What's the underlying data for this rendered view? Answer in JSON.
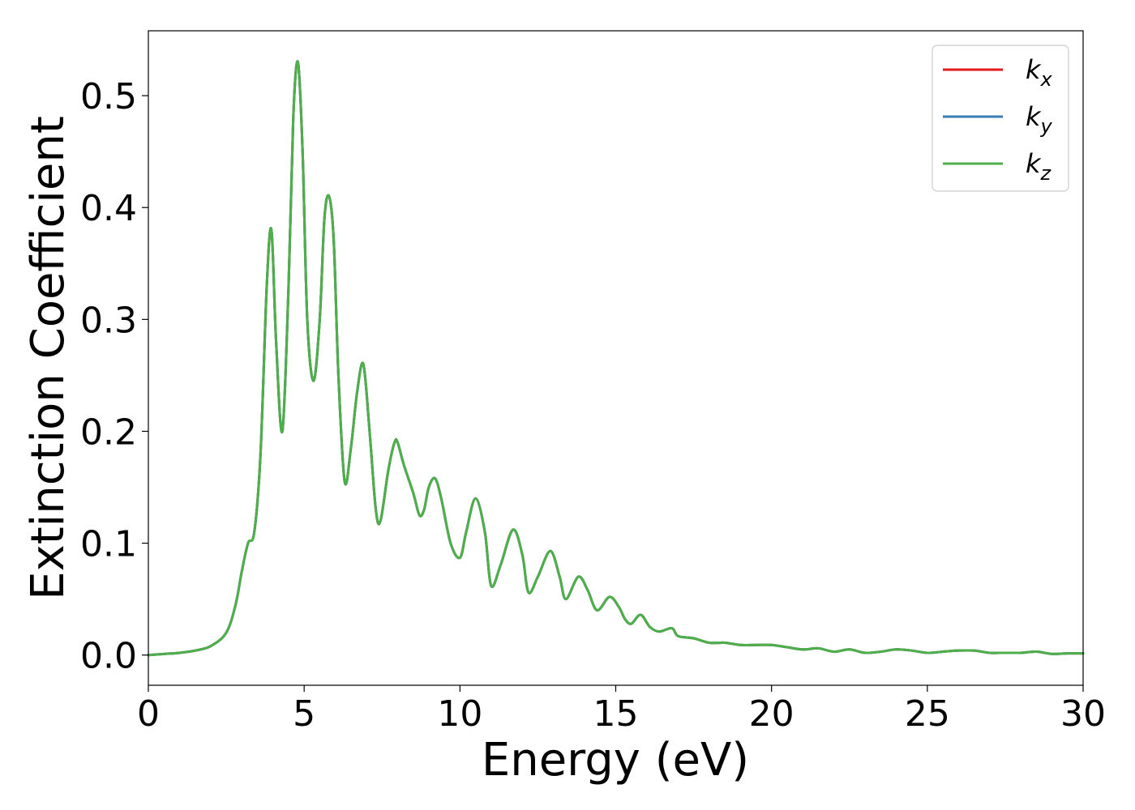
{
  "chart_data": {
    "type": "line",
    "title": "",
    "xlabel": "Energy (eV)",
    "ylabel": "Extinction Coefficient",
    "xlim": [
      0,
      30
    ],
    "ylim": [
      -0.027,
      0.558
    ],
    "xticks": [
      0,
      5,
      10,
      15,
      20,
      25,
      30
    ],
    "xtick_labels": [
      "0",
      "5",
      "10",
      "15",
      "20",
      "25",
      "30"
    ],
    "yticks": [
      0.0,
      0.1,
      0.2,
      0.3,
      0.4,
      0.5
    ],
    "ytick_labels": [
      "0.0",
      "0.1",
      "0.2",
      "0.3",
      "0.4",
      "0.5"
    ],
    "grid": false,
    "legend_position": "top-right",
    "x": [
      0,
      0.5,
      1.0,
      1.5,
      2.0,
      2.5,
      2.8,
      3.0,
      3.2,
      3.4,
      3.6,
      3.8,
      3.95,
      4.1,
      4.3,
      4.5,
      4.65,
      4.8,
      4.95,
      5.1,
      5.3,
      5.5,
      5.65,
      5.8,
      5.95,
      6.1,
      6.3,
      6.5,
      6.7,
      6.9,
      7.1,
      7.3,
      7.45,
      7.7,
      7.9,
      8.0,
      8.2,
      8.5,
      8.7,
      8.85,
      9.0,
      9.2,
      9.4,
      9.7,
      10.0,
      10.2,
      10.5,
      10.8,
      11.0,
      11.3,
      11.7,
      12.0,
      12.2,
      12.5,
      12.9,
      13.2,
      13.4,
      13.8,
      14.1,
      14.4,
      14.8,
      15.1,
      15.3,
      15.5,
      15.8,
      16.1,
      16.4,
      16.8,
      17.0,
      17.5,
      18.0,
      18.5,
      19.0,
      19.5,
      20.0,
      20.5,
      21.0,
      21.5,
      22.0,
      22.5,
      23.0,
      23.5,
      24.0,
      24.5,
      25.0,
      25.5,
      26.0,
      26.5,
      27.0,
      27.5,
      28.0,
      28.5,
      29.0,
      29.5,
      30.0
    ],
    "series": [
      {
        "name": "k_x",
        "color": "#e41a1c",
        "values": [
          0.0,
          0.001,
          0.002,
          0.004,
          0.008,
          0.02,
          0.045,
          0.075,
          0.1,
          0.11,
          0.18,
          0.33,
          0.38,
          0.28,
          0.2,
          0.33,
          0.48,
          0.53,
          0.45,
          0.3,
          0.245,
          0.3,
          0.39,
          0.41,
          0.37,
          0.25,
          0.155,
          0.185,
          0.235,
          0.26,
          0.2,
          0.13,
          0.12,
          0.165,
          0.19,
          0.19,
          0.17,
          0.145,
          0.125,
          0.13,
          0.15,
          0.158,
          0.14,
          0.1,
          0.087,
          0.11,
          0.14,
          0.11,
          0.062,
          0.08,
          0.112,
          0.09,
          0.056,
          0.07,
          0.093,
          0.07,
          0.05,
          0.07,
          0.058,
          0.04,
          0.052,
          0.043,
          0.032,
          0.028,
          0.036,
          0.025,
          0.021,
          0.024,
          0.017,
          0.015,
          0.011,
          0.011,
          0.009,
          0.009,
          0.009,
          0.007,
          0.005,
          0.006,
          0.003,
          0.005,
          0.002,
          0.003,
          0.005,
          0.004,
          0.002,
          0.003,
          0.004,
          0.004,
          0.002,
          0.002,
          0.002,
          0.003,
          0.001,
          0.0015,
          0.0015
        ]
      },
      {
        "name": "k_y",
        "color": "#377eb8",
        "values": [
          0.0,
          0.001,
          0.002,
          0.004,
          0.008,
          0.02,
          0.045,
          0.075,
          0.1,
          0.11,
          0.18,
          0.33,
          0.38,
          0.28,
          0.2,
          0.33,
          0.48,
          0.53,
          0.45,
          0.3,
          0.245,
          0.3,
          0.39,
          0.41,
          0.37,
          0.25,
          0.155,
          0.185,
          0.235,
          0.26,
          0.2,
          0.13,
          0.12,
          0.165,
          0.19,
          0.19,
          0.17,
          0.145,
          0.125,
          0.13,
          0.15,
          0.158,
          0.14,
          0.1,
          0.087,
          0.11,
          0.14,
          0.11,
          0.062,
          0.08,
          0.112,
          0.09,
          0.056,
          0.07,
          0.093,
          0.07,
          0.05,
          0.07,
          0.058,
          0.04,
          0.052,
          0.043,
          0.032,
          0.028,
          0.036,
          0.025,
          0.021,
          0.024,
          0.017,
          0.015,
          0.011,
          0.011,
          0.009,
          0.009,
          0.009,
          0.007,
          0.005,
          0.006,
          0.003,
          0.005,
          0.002,
          0.003,
          0.005,
          0.004,
          0.002,
          0.003,
          0.004,
          0.004,
          0.002,
          0.002,
          0.002,
          0.003,
          0.001,
          0.0015,
          0.0015
        ]
      },
      {
        "name": "k_z",
        "color": "#4daf4a",
        "values": [
          0.0,
          0.001,
          0.002,
          0.004,
          0.008,
          0.02,
          0.045,
          0.075,
          0.1,
          0.11,
          0.18,
          0.33,
          0.38,
          0.28,
          0.2,
          0.33,
          0.48,
          0.53,
          0.45,
          0.3,
          0.245,
          0.3,
          0.39,
          0.41,
          0.37,
          0.25,
          0.155,
          0.185,
          0.235,
          0.26,
          0.2,
          0.13,
          0.12,
          0.165,
          0.19,
          0.19,
          0.17,
          0.145,
          0.125,
          0.13,
          0.15,
          0.158,
          0.14,
          0.1,
          0.087,
          0.11,
          0.14,
          0.11,
          0.062,
          0.08,
          0.112,
          0.09,
          0.056,
          0.07,
          0.093,
          0.07,
          0.05,
          0.07,
          0.058,
          0.04,
          0.052,
          0.043,
          0.032,
          0.028,
          0.036,
          0.025,
          0.021,
          0.024,
          0.017,
          0.015,
          0.011,
          0.011,
          0.009,
          0.009,
          0.009,
          0.007,
          0.005,
          0.006,
          0.003,
          0.005,
          0.002,
          0.003,
          0.005,
          0.004,
          0.002,
          0.003,
          0.004,
          0.004,
          0.002,
          0.002,
          0.002,
          0.003,
          0.001,
          0.0015,
          0.0015
        ]
      }
    ],
    "legend": [
      {
        "base": "k",
        "sub": "x",
        "color": "#e41a1c"
      },
      {
        "base": "k",
        "sub": "y",
        "color": "#377eb8"
      },
      {
        "base": "k",
        "sub": "z",
        "color": "#4daf4a"
      }
    ]
  }
}
